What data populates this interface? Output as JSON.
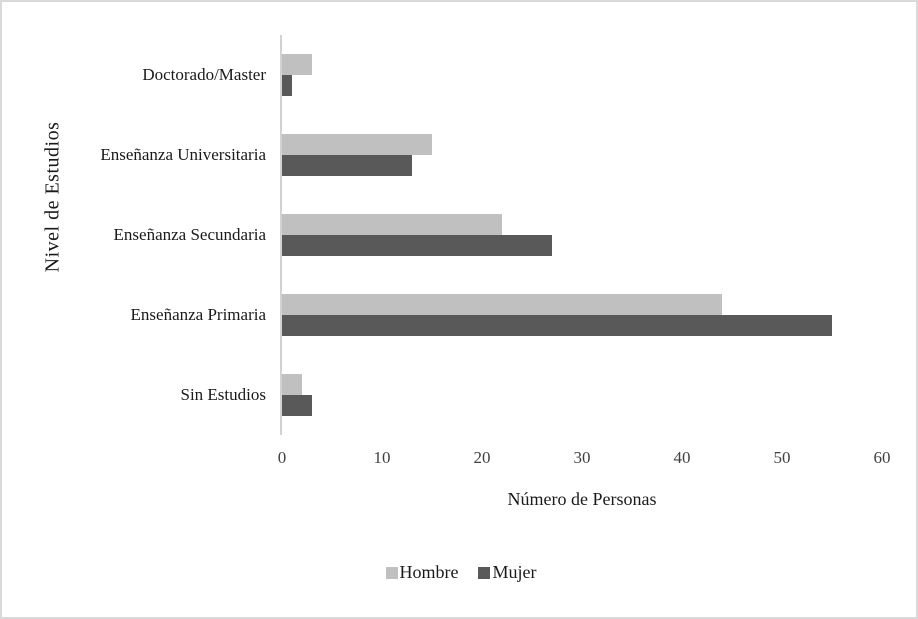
{
  "chart_data": {
    "type": "bar",
    "orientation": "horizontal",
    "categories": [
      "Doctorado/Master",
      "Enseñanza Universitaria",
      "Enseñanza Secundaria",
      "Enseñanza Primaria",
      "Sin Estudios"
    ],
    "series": [
      {
        "name": "Hombre",
        "color": "#c0c0c0",
        "values": [
          3,
          15,
          22,
          44,
          2
        ]
      },
      {
        "name": "Mujer",
        "color": "#595959",
        "values": [
          1,
          13,
          27,
          55,
          3
        ]
      }
    ],
    "title": "",
    "xlabel": "Número de Personas",
    "ylabel": "Nivel de Estudios",
    "xlim": [
      0,
      60
    ],
    "x_ticks": [
      0,
      10,
      20,
      30,
      40,
      50,
      60
    ],
    "grid": false,
    "legend_position": "bottom-center",
    "axis_line_color": "#d2d2d2",
    "frame_border_color": "#d9d9d9"
  }
}
